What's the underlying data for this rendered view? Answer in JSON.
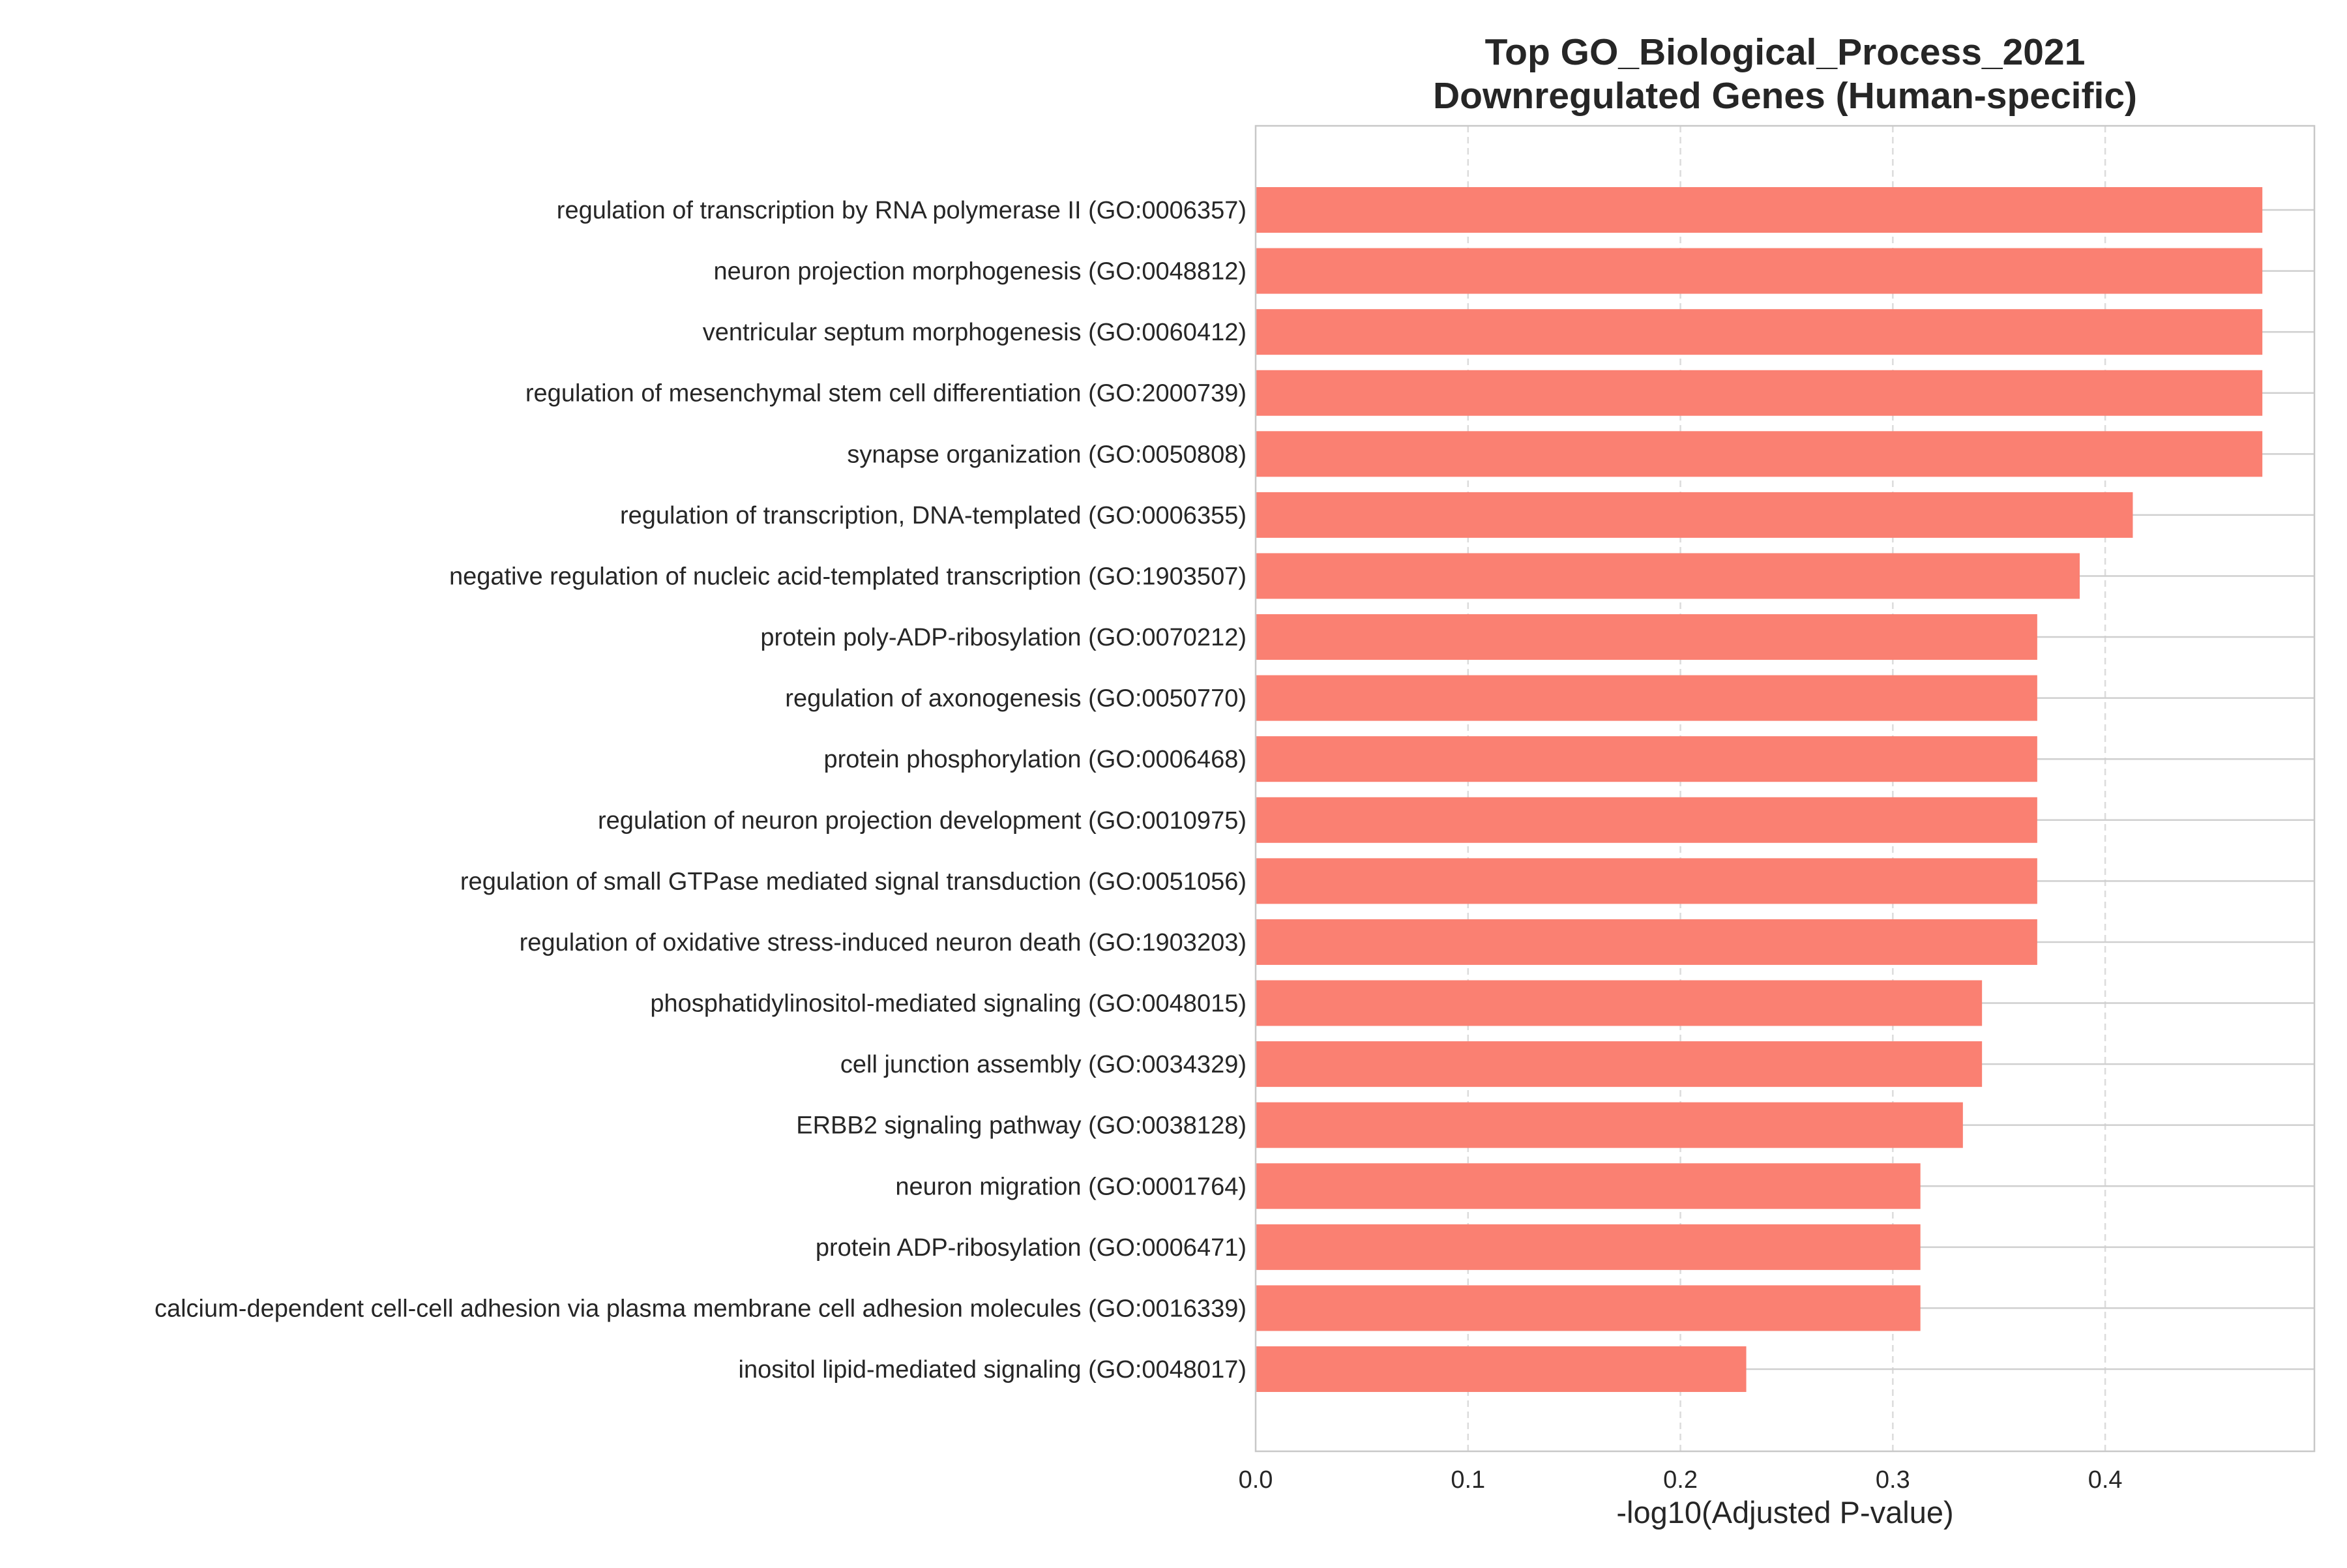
{
  "chart_data": {
    "type": "bar",
    "orientation": "horizontal",
    "title_lines": [
      "Top GO_Biological_Process_2021",
      "Downregulated Genes (Human-specific)"
    ],
    "xlabel": "-log10(Adjusted P-value)",
    "ylabel": "",
    "xlim": [
      0,
      0.4985
    ],
    "x_ticks": [
      0.0,
      0.1,
      0.2,
      0.3,
      0.4
    ],
    "x_tick_labels": [
      "0.0",
      "0.1",
      "0.2",
      "0.3",
      "0.4"
    ],
    "grid": {
      "x": true,
      "y": true,
      "x_style": "dashed"
    },
    "bar_color": "#FA8072",
    "categories": [
      "regulation of transcription by RNA polymerase II (GO:0006357)",
      "neuron projection morphogenesis (GO:0048812)",
      "ventricular septum morphogenesis (GO:0060412)",
      "regulation of mesenchymal stem cell differentiation (GO:2000739)",
      "synapse organization (GO:0050808)",
      "regulation of transcription, DNA-templated (GO:0006355)",
      "negative regulation of nucleic acid-templated transcription (GO:1903507)",
      "protein poly-ADP-ribosylation (GO:0070212)",
      "regulation of axonogenesis (GO:0050770)",
      "protein phosphorylation (GO:0006468)",
      "regulation of neuron projection development (GO:0010975)",
      "regulation of small GTPase mediated signal transduction (GO:0051056)",
      "regulation of oxidative stress-induced neuron death (GO:1903203)",
      "phosphatidylinositol-mediated signaling (GO:0048015)",
      "cell junction assembly (GO:0034329)",
      "ERBB2 signaling pathway (GO:0038128)",
      "neuron migration (GO:0001764)",
      "protein ADP-ribosylation (GO:0006471)",
      "calcium-dependent cell-cell adhesion via plasma membrane cell adhesion molecules (GO:0016339)",
      "inositol lipid-mediated signaling (GO:0048017)"
    ],
    "values": [
      0.474,
      0.474,
      0.474,
      0.474,
      0.474,
      0.413,
      0.388,
      0.368,
      0.368,
      0.368,
      0.368,
      0.368,
      0.368,
      0.342,
      0.342,
      0.333,
      0.313,
      0.313,
      0.313,
      0.231
    ]
  }
}
